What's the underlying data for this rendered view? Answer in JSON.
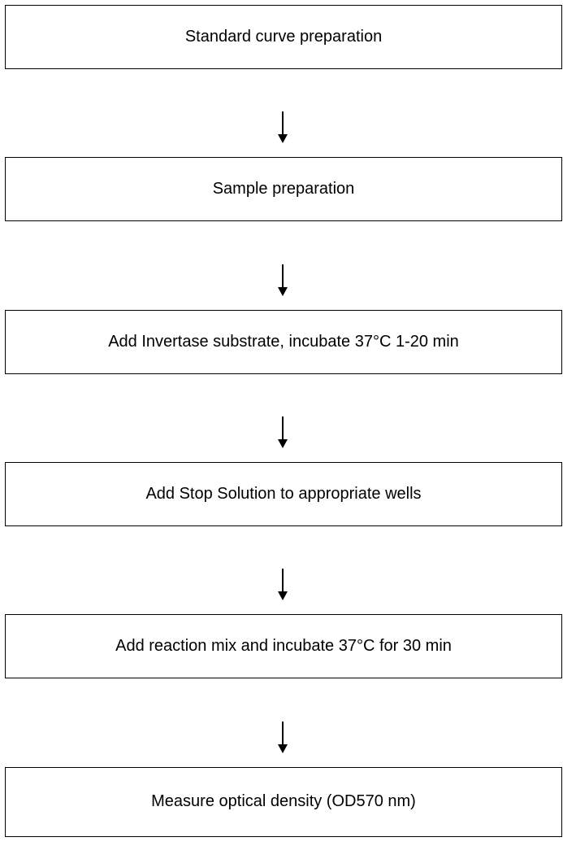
{
  "steps": [
    {
      "label": "Standard curve preparation"
    },
    {
      "label": "Sample preparation"
    },
    {
      "label": "Add Invertase substrate, incubate 37°C 1-20 min"
    },
    {
      "label": "Add Stop Solution to appropriate wells"
    },
    {
      "label": "Add reaction mix and incubate 37°C for 30 min"
    },
    {
      "label": "Measure optical density (OD570 nm)"
    }
  ],
  "colors": {
    "stroke": "#000000",
    "background": "#ffffff"
  },
  "icons": {
    "connector": "arrow-down-icon"
  }
}
